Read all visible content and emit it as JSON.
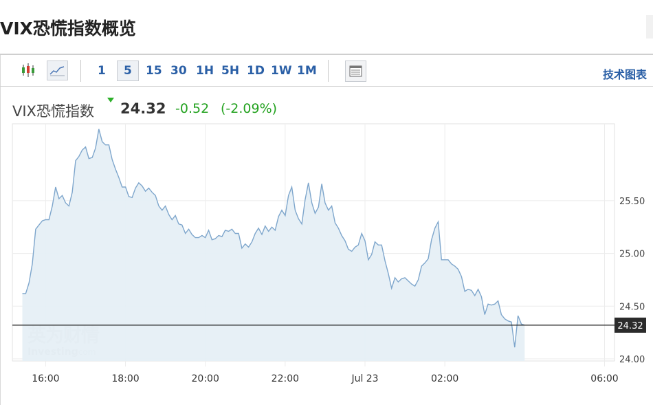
{
  "header": {
    "title": "VIX恐慌指数概览"
  },
  "toolbar": {
    "timeframes": [
      "1",
      "5",
      "15",
      "30",
      "1H",
      "5H",
      "1D",
      "1W",
      "1M"
    ],
    "active_timeframe": "5",
    "tech_link": "技术图表",
    "icons": [
      "candlestick-icon",
      "line-chart-icon",
      "table-icon"
    ]
  },
  "quote": {
    "name": "VIX恐慌指数",
    "price": "24.32",
    "change": "-0.52",
    "change_pct": "(-2.09%)",
    "direction": "down",
    "color_down": "#23a21f"
  },
  "watermark": {
    "cn": "英为财情",
    "en": "Investing",
    "suffix": ".com"
  },
  "colors": {
    "line": "#7ea6cc",
    "area": "#e6eff5",
    "price_line": "#222222",
    "price_label_bg": "#2b2b2b"
  },
  "chart_data": {
    "type": "area",
    "x_tick_labels": [
      "16:00",
      "18:00",
      "20:00",
      "22:00",
      "Jul 23",
      "02:00",
      "06:00"
    ],
    "y_tick_labels": [
      "25.50",
      "25.00",
      "24.50",
      "24.00"
    ],
    "ylim": [
      23.98,
      26.23
    ],
    "current_value_label": "24.32",
    "current_value": 24.32,
    "grid": true,
    "legend": "none",
    "x_start": "15:25",
    "x_end": "06:15",
    "x_unit": "time",
    "points": [
      [
        "15:25",
        24.62
      ],
      [
        "15:30",
        24.62
      ],
      [
        "15:35",
        24.72
      ],
      [
        "15:40",
        24.9
      ],
      [
        "15:45",
        25.23
      ],
      [
        "15:50",
        25.27
      ],
      [
        "15:55",
        25.31
      ],
      [
        "16:00",
        25.32
      ],
      [
        "16:05",
        25.32
      ],
      [
        "16:10",
        25.45
      ],
      [
        "16:15",
        25.63
      ],
      [
        "16:20",
        25.52
      ],
      [
        "16:25",
        25.55
      ],
      [
        "16:30",
        25.48
      ],
      [
        "16:35",
        25.45
      ],
      [
        "16:40",
        25.58
      ],
      [
        "16:45",
        25.88
      ],
      [
        "16:50",
        25.92
      ],
      [
        "16:55",
        25.98
      ],
      [
        "17:00",
        26.01
      ],
      [
        "17:05",
        25.9
      ],
      [
        "17:10",
        25.91
      ],
      [
        "17:15",
        26.0
      ],
      [
        "17:20",
        26.18
      ],
      [
        "17:25",
        26.06
      ],
      [
        "17:30",
        26.03
      ],
      [
        "17:35",
        26.03
      ],
      [
        "17:40",
        25.89
      ],
      [
        "17:45",
        25.8
      ],
      [
        "17:50",
        25.72
      ],
      [
        "17:55",
        25.63
      ],
      [
        "18:00",
        25.63
      ],
      [
        "18:05",
        25.54
      ],
      [
        "18:10",
        25.53
      ],
      [
        "18:15",
        25.62
      ],
      [
        "18:20",
        25.67
      ],
      [
        "18:25",
        25.64
      ],
      [
        "18:30",
        25.59
      ],
      [
        "18:35",
        25.62
      ],
      [
        "18:40",
        25.58
      ],
      [
        "18:45",
        25.55
      ],
      [
        "18:50",
        25.45
      ],
      [
        "18:55",
        25.41
      ],
      [
        "19:00",
        25.45
      ],
      [
        "19:05",
        25.37
      ],
      [
        "19:10",
        25.32
      ],
      [
        "19:15",
        25.36
      ],
      [
        "19:20",
        25.28
      ],
      [
        "19:25",
        25.27
      ],
      [
        "19:30",
        25.19
      ],
      [
        "19:35",
        25.23
      ],
      [
        "19:40",
        25.18
      ],
      [
        "19:45",
        25.15
      ],
      [
        "19:50",
        25.15
      ],
      [
        "19:55",
        25.17
      ],
      [
        "20:00",
        25.15
      ],
      [
        "20:05",
        25.22
      ],
      [
        "20:10",
        25.13
      ],
      [
        "20:15",
        25.14
      ],
      [
        "20:20",
        25.17
      ],
      [
        "20:25",
        25.16
      ],
      [
        "20:30",
        25.22
      ],
      [
        "20:35",
        25.21
      ],
      [
        "20:40",
        25.23
      ],
      [
        "20:45",
        25.19
      ],
      [
        "20:50",
        25.19
      ],
      [
        "20:55",
        25.05
      ],
      [
        "21:00",
        25.09
      ],
      [
        "21:05",
        25.06
      ],
      [
        "21:10",
        25.11
      ],
      [
        "21:15",
        25.19
      ],
      [
        "21:20",
        25.24
      ],
      [
        "21:25",
        25.18
      ],
      [
        "21:30",
        25.26
      ],
      [
        "21:35",
        25.21
      ],
      [
        "21:40",
        25.25
      ],
      [
        "21:45",
        25.22
      ],
      [
        "21:50",
        25.35
      ],
      [
        "21:55",
        25.41
      ],
      [
        "22:00",
        25.36
      ],
      [
        "22:05",
        25.55
      ],
      [
        "22:10",
        25.63
      ],
      [
        "22:15",
        25.41
      ],
      [
        "22:20",
        25.33
      ],
      [
        "22:25",
        25.28
      ],
      [
        "22:30",
        25.51
      ],
      [
        "22:35",
        25.67
      ],
      [
        "22:40",
        25.48
      ],
      [
        "22:45",
        25.38
      ],
      [
        "22:50",
        25.44
      ],
      [
        "22:55",
        25.66
      ],
      [
        "23:00",
        25.48
      ],
      [
        "23:05",
        25.41
      ],
      [
        "23:10",
        25.45
      ],
      [
        "23:15",
        25.29
      ],
      [
        "23:20",
        25.24
      ],
      [
        "23:25",
        25.17
      ],
      [
        "23:30",
        25.12
      ],
      [
        "23:35",
        25.04
      ],
      [
        "23:40",
        25.02
      ],
      [
        "23:45",
        25.06
      ],
      [
        "23:50",
        25.08
      ],
      [
        "23:55",
        25.19
      ],
      [
        "00:00",
        25.12
      ],
      [
        "00:05",
        24.94
      ],
      [
        "00:10",
        24.99
      ],
      [
        "00:15",
        25.11
      ],
      [
        "00:20",
        25.08
      ],
      [
        "00:25",
        25.08
      ],
      [
        "00:30",
        24.93
      ],
      [
        "00:35",
        24.81
      ],
      [
        "00:40",
        24.67
      ],
      [
        "00:45",
        24.77
      ],
      [
        "00:50",
        24.73
      ],
      [
        "00:55",
        24.76
      ],
      [
        "01:00",
        24.77
      ],
      [
        "01:05",
        24.74
      ],
      [
        "01:10",
        24.71
      ],
      [
        "01:15",
        24.69
      ],
      [
        "01:20",
        24.75
      ],
      [
        "01:25",
        24.88
      ],
      [
        "01:30",
        24.91
      ],
      [
        "01:35",
        24.95
      ],
      [
        "01:40",
        25.13
      ],
      [
        "01:45",
        25.24
      ],
      [
        "01:50",
        25.3
      ],
      [
        "01:55",
        24.94
      ],
      [
        "02:00",
        24.94
      ],
      [
        "02:05",
        24.94
      ],
      [
        "02:10",
        24.9
      ],
      [
        "02:15",
        24.88
      ],
      [
        "02:20",
        24.85
      ],
      [
        "02:25",
        24.78
      ],
      [
        "02:30",
        24.64
      ],
      [
        "02:35",
        24.66
      ],
      [
        "02:40",
        24.65
      ],
      [
        "02:45",
        24.6
      ],
      [
        "02:50",
        24.66
      ],
      [
        "02:55",
        24.59
      ],
      [
        "03:00",
        24.42
      ],
      [
        "03:05",
        24.52
      ],
      [
        "03:10",
        24.51
      ],
      [
        "03:15",
        24.52
      ],
      [
        "03:20",
        24.55
      ],
      [
        "03:25",
        24.42
      ],
      [
        "03:30",
        24.38
      ],
      [
        "03:35",
        24.36
      ],
      [
        "03:40",
        24.35
      ],
      [
        "03:45",
        24.11
      ],
      [
        "03:50",
        24.41
      ],
      [
        "03:55",
        24.33
      ],
      [
        "04:00",
        24.32
      ]
    ]
  }
}
